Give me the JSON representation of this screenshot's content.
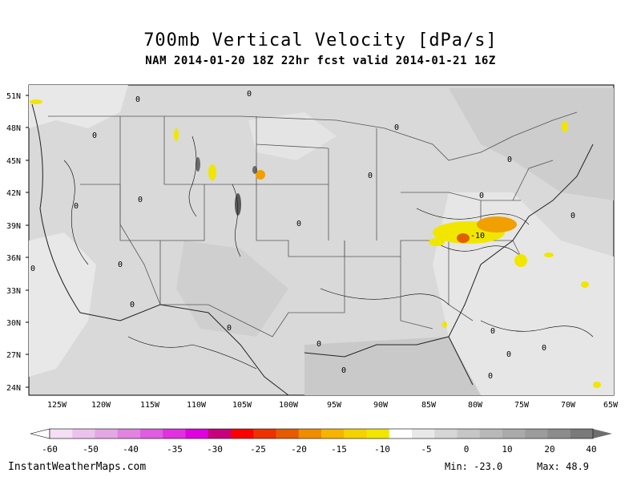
{
  "title": "700mb Vertical Velocity [dPa/s]",
  "subtitle": "NAM 2014-01-20 18Z 22hr fcst valid 2014-01-21 16Z",
  "axes": {
    "lat_labels": [
      "51N",
      "48N",
      "45N",
      "42N",
      "39N",
      "36N",
      "33N",
      "30N",
      "27N",
      "24N"
    ],
    "lon_labels": [
      "125W",
      "120W",
      "115W",
      "110W",
      "105W",
      "100W",
      "95W",
      "90W",
      "85W",
      "80W",
      "75W",
      "70W",
      "65W"
    ]
  },
  "colorbar": {
    "labels": [
      "-60",
      "-50",
      "-40",
      "-35",
      "-30",
      "-25",
      "-20",
      "-15",
      "-10",
      "-5",
      "0",
      "10",
      "20",
      "40"
    ],
    "colors": [
      "#f4dff4",
      "#ecc2ec",
      "#e4a6e4",
      "#e084e0",
      "#e05ce0",
      "#e030e0",
      "#e000e0",
      "#c8007a",
      "#ff0000",
      "#f03000",
      "#e65a00",
      "#f08c00",
      "#f5b400",
      "#f5d200",
      "#f0e600",
      "#ffffff",
      "#e8e8e8",
      "#d6d6d6",
      "#c6c6c6",
      "#b8b8b8",
      "#aaaaaa",
      "#9c9c9c",
      "#8c8c8c",
      "#7a7a7a"
    ]
  },
  "footer": {
    "site": "InstantWeatherMaps.com",
    "min": "Min: -23.0",
    "max": "Max: 48.9"
  },
  "field_colors": {
    "background": "#d9d9d9",
    "light_areas": "#e8e8e8",
    "dark_areas": "#c6c6c6",
    "yellow": "#f0e600",
    "orange": "#f0a000"
  },
  "contour_label": "0",
  "contour_label_neg": "-10"
}
